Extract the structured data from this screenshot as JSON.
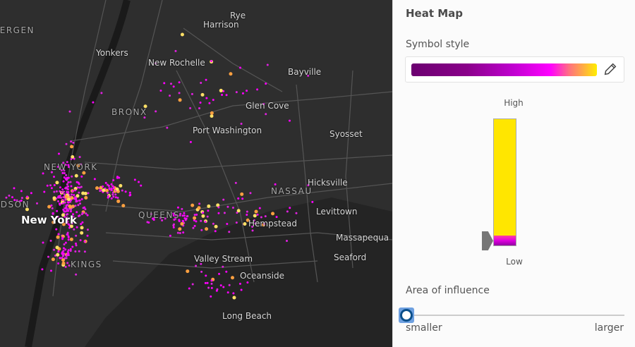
{
  "map": {
    "labels": [
      "BERGEN",
      "Rye",
      "Harrison",
      "Yonkers",
      "New Rochelle",
      "Bayville",
      "BRONX",
      "Glen Cove",
      "Port Washington",
      "Syosset",
      "NEW YORK",
      "Hicksville",
      "NASSAU",
      "Levittown",
      "HUDSON",
      "New York",
      "QUEENS",
      "Hempstead",
      "Massapequa",
      "KINGS",
      "Valley Stream",
      "Seaford",
      "Oceanside",
      "Long Beach"
    ],
    "heat_colors": [
      "#ff00ff",
      "#e020e0",
      "#ffa040",
      "#ffe066"
    ]
  },
  "panel": {
    "title": "Heat Map",
    "symbol_style_label": "Symbol style",
    "edit_icon": "pencil-icon",
    "ramp_colors": [
      "#6b0070",
      "#ff00ff",
      "#ffee00"
    ],
    "high_label": "High",
    "low_label": "Low",
    "area_label": "Area of influence",
    "slider_min_label": "smaller",
    "slider_max_label": "larger",
    "slider_value_percent": 0
  }
}
